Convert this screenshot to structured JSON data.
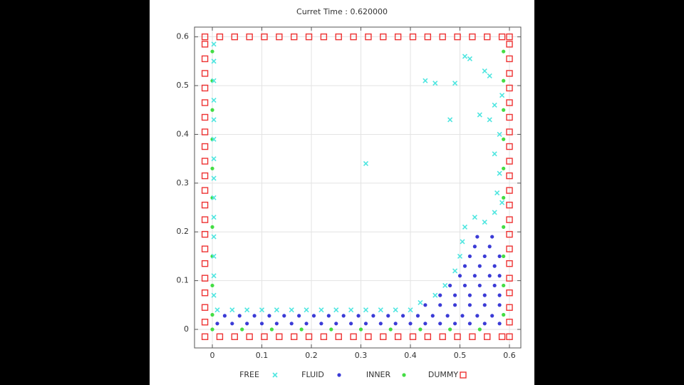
{
  "chart_data": {
    "type": "scatter",
    "title": "Curret Time : 0.620000",
    "xlim": [
      -0.036,
      0.623
    ],
    "ylim": [
      -0.038,
      0.62
    ],
    "xticks": [
      0,
      0.1,
      0.2,
      0.3,
      0.4,
      0.5,
      0.6
    ],
    "yticks": [
      0,
      0.1,
      0.2,
      0.3,
      0.4,
      0.5,
      0.6
    ],
    "grid": true,
    "legend": "bottom",
    "series": [
      {
        "name": "FREE",
        "color": "#4fe6e0",
        "marker": "cross",
        "x": [
          0.003,
          0.003,
          0.003,
          0.003,
          0.003,
          0.003,
          0.003,
          0.003,
          0.003,
          0.003,
          0.003,
          0.003,
          0.003,
          0.003,
          0.01,
          0.04,
          0.07,
          0.1,
          0.13,
          0.16,
          0.19,
          0.22,
          0.25,
          0.28,
          0.31,
          0.34,
          0.37,
          0.4,
          0.42,
          0.45,
          0.47,
          0.49,
          0.5,
          0.505,
          0.51,
          0.53,
          0.55,
          0.57,
          0.575,
          0.58,
          0.57,
          0.58,
          0.56,
          0.57,
          0.585,
          0.56,
          0.55,
          0.51,
          0.52,
          0.49,
          0.43,
          0.45,
          0.31,
          0.48,
          0.54,
          0.585
        ],
        "values": [
          0.07,
          0.11,
          0.15,
          0.19,
          0.23,
          0.27,
          0.31,
          0.35,
          0.39,
          0.43,
          0.47,
          0.51,
          0.55,
          0.585,
          0.04,
          0.04,
          0.04,
          0.04,
          0.04,
          0.04,
          0.04,
          0.04,
          0.04,
          0.04,
          0.04,
          0.04,
          0.04,
          0.04,
          0.055,
          0.07,
          0.09,
          0.12,
          0.15,
          0.18,
          0.21,
          0.23,
          0.22,
          0.24,
          0.28,
          0.32,
          0.36,
          0.4,
          0.43,
          0.46,
          0.48,
          0.52,
          0.53,
          0.56,
          0.555,
          0.505,
          0.51,
          0.505,
          0.34,
          0.43,
          0.44,
          0.26
        ]
      },
      {
        "name": "FLUID",
        "color": "#3b3bd6",
        "marker": "circle",
        "x": [
          0.01,
          0.04,
          0.07,
          0.1,
          0.13,
          0.16,
          0.19,
          0.22,
          0.25,
          0.28,
          0.31,
          0.34,
          0.37,
          0.4,
          0.43,
          0.46,
          0.49,
          0.52,
          0.55,
          0.58,
          0.025,
          0.055,
          0.085,
          0.115,
          0.145,
          0.175,
          0.205,
          0.235,
          0.265,
          0.295,
          0.325,
          0.355,
          0.385,
          0.415,
          0.445,
          0.475,
          0.505,
          0.535,
          0.565,
          0.43,
          0.46,
          0.49,
          0.52,
          0.55,
          0.58,
          0.46,
          0.49,
          0.52,
          0.55,
          0.58,
          0.48,
          0.51,
          0.54,
          0.57,
          0.5,
          0.53,
          0.56,
          0.58,
          0.51,
          0.54,
          0.57,
          0.52,
          0.55,
          0.58,
          0.53,
          0.56,
          0.535,
          0.565
        ],
        "values": [
          0.012,
          0.012,
          0.012,
          0.012,
          0.012,
          0.012,
          0.012,
          0.012,
          0.012,
          0.012,
          0.012,
          0.012,
          0.012,
          0.012,
          0.012,
          0.012,
          0.012,
          0.012,
          0.012,
          0.012,
          0.028,
          0.028,
          0.028,
          0.028,
          0.028,
          0.028,
          0.028,
          0.028,
          0.028,
          0.028,
          0.028,
          0.028,
          0.028,
          0.028,
          0.028,
          0.028,
          0.028,
          0.028,
          0.028,
          0.05,
          0.05,
          0.05,
          0.05,
          0.05,
          0.05,
          0.07,
          0.07,
          0.07,
          0.07,
          0.07,
          0.09,
          0.09,
          0.09,
          0.09,
          0.11,
          0.11,
          0.11,
          0.11,
          0.13,
          0.13,
          0.13,
          0.15,
          0.15,
          0.15,
          0.17,
          0.17,
          0.19,
          0.19
        ]
      },
      {
        "name": "INNER",
        "color": "#44dd44",
        "marker": "circle",
        "x": [
          0,
          0,
          0,
          0,
          0,
          0,
          0,
          0,
          0,
          0,
          0,
          0.06,
          0.12,
          0.18,
          0.24,
          0.3,
          0.36,
          0.42,
          0.48,
          0.54,
          0.588,
          0.588,
          0.588,
          0.588,
          0.588,
          0.588,
          0.588,
          0.588,
          0.588,
          0.588
        ],
        "values": [
          0.03,
          0.09,
          0.15,
          0.21,
          0.27,
          0.33,
          0.39,
          0.45,
          0.51,
          0.57,
          0,
          0,
          0,
          0,
          0,
          0,
          0,
          0,
          0,
          0,
          0.03,
          0.09,
          0.15,
          0.21,
          0.27,
          0.33,
          0.39,
          0.45,
          0.51,
          0.57
        ]
      },
      {
        "name": "DUMMY",
        "color": "#ee3333",
        "marker": "square",
        "x": [
          -0.015,
          -0.015,
          -0.015,
          -0.015,
          -0.015,
          -0.015,
          -0.015,
          -0.015,
          -0.015,
          -0.015,
          -0.015,
          -0.015,
          -0.015,
          -0.015,
          -0.015,
          -0.015,
          -0.015,
          -0.015,
          -0.015,
          -0.015,
          -0.015,
          0.6,
          0.6,
          0.6,
          0.6,
          0.6,
          0.6,
          0.6,
          0.6,
          0.6,
          0.6,
          0.6,
          0.6,
          0.6,
          0.6,
          0.6,
          0.6,
          0.6,
          0.6,
          0.6,
          0.6,
          0.6,
          0.015,
          0.045,
          0.075,
          0.105,
          0.135,
          0.165,
          0.195,
          0.225,
          0.255,
          0.285,
          0.315,
          0.345,
          0.375,
          0.405,
          0.435,
          0.465,
          0.495,
          0.525,
          0.555,
          0.585,
          -0.015,
          0.015,
          0.045,
          0.075,
          0.105,
          0.135,
          0.165,
          0.195,
          0.225,
          0.255,
          0.285,
          0.315,
          0.345,
          0.375,
          0.405,
          0.435,
          0.465,
          0.495,
          0.525,
          0.555,
          0.585,
          0.6
        ],
        "values": [
          -0.015,
          0.015,
          0.045,
          0.075,
          0.105,
          0.135,
          0.165,
          0.195,
          0.225,
          0.255,
          0.285,
          0.315,
          0.345,
          0.375,
          0.405,
          0.435,
          0.465,
          0.495,
          0.525,
          0.555,
          0.585,
          -0.015,
          0.015,
          0.045,
          0.075,
          0.105,
          0.135,
          0.165,
          0.195,
          0.225,
          0.255,
          0.285,
          0.315,
          0.345,
          0.375,
          0.405,
          0.435,
          0.465,
          0.495,
          0.525,
          0.555,
          0.585,
          -0.015,
          -0.015,
          -0.015,
          -0.015,
          -0.015,
          -0.015,
          -0.015,
          -0.015,
          -0.015,
          -0.015,
          -0.015,
          -0.015,
          -0.015,
          -0.015,
          -0.015,
          -0.015,
          -0.015,
          -0.015,
          -0.015,
          -0.015,
          0.6,
          0.6,
          0.6,
          0.6,
          0.6,
          0.6,
          0.6,
          0.6,
          0.6,
          0.6,
          0.6,
          0.6,
          0.6,
          0.6,
          0.6,
          0.6,
          0.6,
          0.6,
          0.6,
          0.6,
          0.6,
          0.6
        ]
      }
    ]
  }
}
